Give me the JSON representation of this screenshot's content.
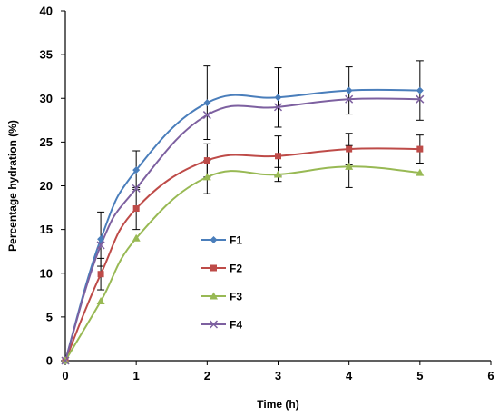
{
  "chart_data": {
    "type": "line",
    "title": "",
    "xlabel": "Time (h)",
    "ylabel": "Percentage hydration (%)",
    "xlim": [
      0,
      6
    ],
    "ylim": [
      0,
      40
    ],
    "xticks": [
      0,
      1,
      2,
      3,
      4,
      5,
      6
    ],
    "yticks": [
      0,
      5,
      10,
      15,
      20,
      25,
      30,
      35,
      40
    ],
    "grid": false,
    "smooth": true,
    "legend_position": "center-left",
    "x": [
      0,
      0.5,
      1,
      2,
      3,
      4,
      5
    ],
    "series": [
      {
        "name": "F1",
        "color": "#4a7ebb",
        "marker": "diamond",
        "values": [
          0,
          13.9,
          21.8,
          29.5,
          30.1,
          30.9,
          30.9
        ],
        "errors": [
          0,
          3.1,
          2.2,
          4.2,
          3.4,
          2.7,
          3.4
        ]
      },
      {
        "name": "F2",
        "color": "#be4b48",
        "marker": "square",
        "values": [
          0,
          9.9,
          17.4,
          22.9,
          23.4,
          24.2,
          24.2
        ],
        "errors": [
          0,
          1.8,
          2.4,
          1.9,
          2.3,
          1.8,
          1.6
        ]
      },
      {
        "name": "F3",
        "color": "#98b954",
        "marker": "triangle",
        "values": [
          0,
          6.8,
          14.0,
          21.0,
          21.3,
          22.2,
          21.5
        ],
        "errors": [
          0,
          0,
          0,
          1.9,
          0.8,
          2.4,
          0
        ]
      },
      {
        "name": "F4",
        "color": "#7d60a0",
        "marker": "x",
        "values": [
          0,
          13.2,
          19.7,
          28.1,
          29.0,
          29.9,
          29.9
        ],
        "errors": [
          0,
          0,
          0,
          0,
          0,
          0,
          0
        ]
      }
    ]
  }
}
